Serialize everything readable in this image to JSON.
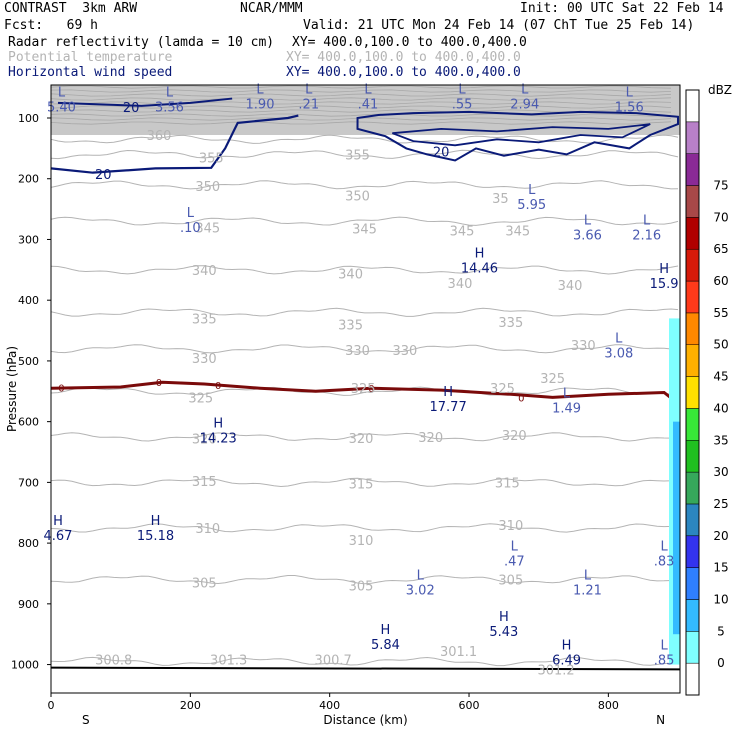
{
  "header": {
    "model": "CONTRAST  3km ARW",
    "org": "NCAR/MMM",
    "init": "Init: 00 UTC Sat 22 Feb 14",
    "fcst": "Fcst:   69 h",
    "valid": "Valid: 21 UTC Mon 24 Feb 14 (07 ChT Tue 25 Feb 14)",
    "field1": "Radar reflectivity (lamda = 10 cm)",
    "field2": "Potential temperature",
    "field3": "Horizontal wind speed",
    "xy1": "XY= 400.0,100.0 to 400.0,400.0",
    "xy2": "XY= 400.0,100.0 to 400.0,400.0",
    "xy3": "XY= 400.0,100.0 to 400.0,400.0"
  },
  "colors": {
    "theta": "#b4b4b4",
    "wind": "#0a1a78",
    "freezing": "#7a0a0a"
  },
  "chart_data": {
    "type": "cross-section",
    "xlabel": "Distance (km)",
    "ylabel": "Pressure (hPa)",
    "x_ticks": [
      0,
      200,
      400,
      600,
      800
    ],
    "x_ticklabels": [
      "0",
      "200",
      "400",
      "600",
      "800"
    ],
    "xlim": [
      0,
      900
    ],
    "end_labels": {
      "left": "S",
      "right": "N"
    },
    "y_ticks": [
      100,
      200,
      300,
      400,
      500,
      600,
      700,
      800,
      900,
      1000
    ],
    "y_ticklabels": [
      "100",
      "200",
      "300",
      "400",
      "500",
      "600",
      "700",
      "800",
      "900",
      "1000"
    ],
    "ylim": [
      1050,
      50
    ],
    "colorbar": {
      "title": "dBZ",
      "levels": [
        "0",
        "5",
        "10",
        "15",
        "20",
        "25",
        "30",
        "35",
        "40",
        "45",
        "50",
        "55",
        "60",
        "65",
        "70",
        "75"
      ],
      "colors": [
        "#ffffff",
        "#7fffff",
        "#33bbff",
        "#2f7fff",
        "#3333ee",
        "#2b86c0",
        "#36a85b",
        "#20c020",
        "#38e838",
        "#ffe000",
        "#ffb000",
        "#ff8800",
        "#ff3a1a",
        "#d61a0a",
        "#b00000",
        "#a84848",
        "#8a2a96",
        "#b880c8",
        "#ffffff"
      ]
    },
    "theta_contours": [
      {
        "label": "360",
        "p": 135
      },
      {
        "label": "355",
        "p": 160
      },
      {
        "label": "350",
        "p": 210
      },
      {
        "label": "345",
        "p": 270
      },
      {
        "label": "340",
        "p": 350
      },
      {
        "label": "335",
        "p": 420
      },
      {
        "label": "330",
        "p": 480
      },
      {
        "label": "325",
        "p": 550
      },
      {
        "label": "320",
        "p": 625
      },
      {
        "label": "315",
        "p": 700
      },
      {
        "label": "310",
        "p": 775
      },
      {
        "label": "305",
        "p": 860
      },
      {
        "label": "300",
        "p": 995
      }
    ],
    "theta_labels": [
      {
        "text": "360",
        "x": 155,
        "p": 128
      },
      {
        "text": "355",
        "x": 230,
        "p": 165
      },
      {
        "text": "355",
        "x": 440,
        "p": 160
      },
      {
        "text": "350",
        "x": 225,
        "p": 212
      },
      {
        "text": "350",
        "x": 440,
        "p": 228
      },
      {
        "text": "35",
        "x": 645,
        "p": 232
      },
      {
        "text": "345",
        "x": 225,
        "p": 280
      },
      {
        "text": "345",
        "x": 450,
        "p": 282
      },
      {
        "text": "345",
        "x": 590,
        "p": 285
      },
      {
        "text": "345",
        "x": 670,
        "p": 285
      },
      {
        "text": "340",
        "x": 220,
        "p": 350
      },
      {
        "text": "340",
        "x": 430,
        "p": 356
      },
      {
        "text": "340",
        "x": 587,
        "p": 372
      },
      {
        "text": "340",
        "x": 745,
        "p": 375
      },
      {
        "text": "335",
        "x": 220,
        "p": 430
      },
      {
        "text": "335",
        "x": 430,
        "p": 440
      },
      {
        "text": "335",
        "x": 660,
        "p": 436
      },
      {
        "text": "330",
        "x": 220,
        "p": 495
      },
      {
        "text": "330",
        "x": 440,
        "p": 482
      },
      {
        "text": "330",
        "x": 508,
        "p": 482
      },
      {
        "text": "330",
        "x": 764,
        "p": 474
      },
      {
        "text": "325",
        "x": 215,
        "p": 560
      },
      {
        "text": "325",
        "x": 448,
        "p": 545
      },
      {
        "text": "325",
        "x": 648,
        "p": 545
      },
      {
        "text": "325",
        "x": 720,
        "p": 528
      },
      {
        "text": "320",
        "x": 220,
        "p": 628
      },
      {
        "text": "320",
        "x": 445,
        "p": 627
      },
      {
        "text": "320",
        "x": 545,
        "p": 625
      },
      {
        "text": "320",
        "x": 665,
        "p": 622
      },
      {
        "text": "315",
        "x": 220,
        "p": 698
      },
      {
        "text": "315",
        "x": 445,
        "p": 702
      },
      {
        "text": "315",
        "x": 655,
        "p": 700
      },
      {
        "text": "310",
        "x": 225,
        "p": 775
      },
      {
        "text": "310",
        "x": 445,
        "p": 795
      },
      {
        "text": "310",
        "x": 660,
        "p": 770
      },
      {
        "text": "305",
        "x": 220,
        "p": 865
      },
      {
        "text": "305",
        "x": 445,
        "p": 870
      },
      {
        "text": "305",
        "x": 660,
        "p": 860
      },
      {
        "text": "300.8",
        "x": 90,
        "p": 992
      },
      {
        "text": "301.3",
        "x": 255,
        "p": 992
      },
      {
        "text": "300.7",
        "x": 405,
        "p": 992
      },
      {
        "text": "301.1",
        "x": 585,
        "p": 978
      },
      {
        "text": "301.2",
        "x": 725,
        "p": 1008
      }
    ],
    "wind_contours": [
      {
        "label": "20",
        "p_region": [
          80,
          200
        ]
      }
    ],
    "wind_labels": [
      {
        "text": "20",
        "x": 115,
        "p": 82
      },
      {
        "text": "20",
        "x": 75,
        "p": 192
      },
      {
        "text": "20",
        "x": 560,
        "p": 155
      }
    ],
    "freezing_level": {
      "label": "0",
      "p": 550
    },
    "freezing_labels": [
      {
        "text": "0",
        "x": 15,
        "p": 544
      },
      {
        "text": "0",
        "x": 155,
        "p": 535
      },
      {
        "text": "0",
        "x": 240,
        "p": 540
      },
      {
        "text": "0",
        "x": 460,
        "p": 545
      },
      {
        "text": "0",
        "x": 675,
        "p": 560
      }
    ],
    "extrema": [
      {
        "type": "L",
        "value": "5.40",
        "x": 15,
        "p": 65
      },
      {
        "type": "L",
        "value": "3.56",
        "x": 170,
        "p": 65
      },
      {
        "type": "L",
        "value": "1.90",
        "x": 300,
        "p": 60
      },
      {
        "type": "L",
        "value": ".21",
        "x": 370,
        "p": 60
      },
      {
        "type": "L",
        "value": ".41",
        "x": 455,
        "p": 60
      },
      {
        "type": "L",
        "value": ".55",
        "x": 590,
        "p": 60
      },
      {
        "type": "L",
        "value": "2.94",
        "x": 680,
        "p": 60
      },
      {
        "type": "L",
        "value": "1.56",
        "x": 830,
        "p": 65
      },
      {
        "type": "L",
        "value": ".10",
        "x": 200,
        "p": 263
      },
      {
        "type": "L",
        "value": "5.95",
        "x": 690,
        "p": 225
      },
      {
        "type": "L",
        "value": "3.66",
        "x": 770,
        "p": 275
      },
      {
        "type": "L",
        "value": "2.16",
        "x": 855,
        "p": 275
      },
      {
        "type": "H",
        "value": "14.46",
        "x": 615,
        "p": 330
      },
      {
        "type": "H",
        "value": "15.9",
        "x": 880,
        "p": 355
      },
      {
        "type": "L",
        "value": "3.08",
        "x": 815,
        "p": 470
      },
      {
        "type": "H",
        "value": "17.77",
        "x": 570,
        "p": 558
      },
      {
        "type": "L",
        "value": "1.49",
        "x": 740,
        "p": 560
      },
      {
        "type": "H",
        "value": "14.23",
        "x": 240,
        "p": 610
      },
      {
        "type": "H",
        "value": "4.67",
        "x": 10,
        "p": 770
      },
      {
        "type": "H",
        "value": "15.18",
        "x": 150,
        "p": 770
      },
      {
        "type": "L",
        "value": ".47",
        "x": 665,
        "p": 812
      },
      {
        "type": "L",
        "value": ".83",
        "x": 880,
        "p": 812
      },
      {
        "type": "L",
        "value": "3.02",
        "x": 530,
        "p": 860
      },
      {
        "type": "L",
        "value": "1.21",
        "x": 770,
        "p": 860
      },
      {
        "type": "H",
        "value": "5.84",
        "x": 480,
        "p": 950
      },
      {
        "type": "H",
        "value": "5.43",
        "x": 650,
        "p": 928
      },
      {
        "type": "H",
        "value": "6.49",
        "x": 740,
        "p": 975
      },
      {
        "type": "L",
        "value": ".85",
        "x": 880,
        "p": 975
      }
    ]
  }
}
